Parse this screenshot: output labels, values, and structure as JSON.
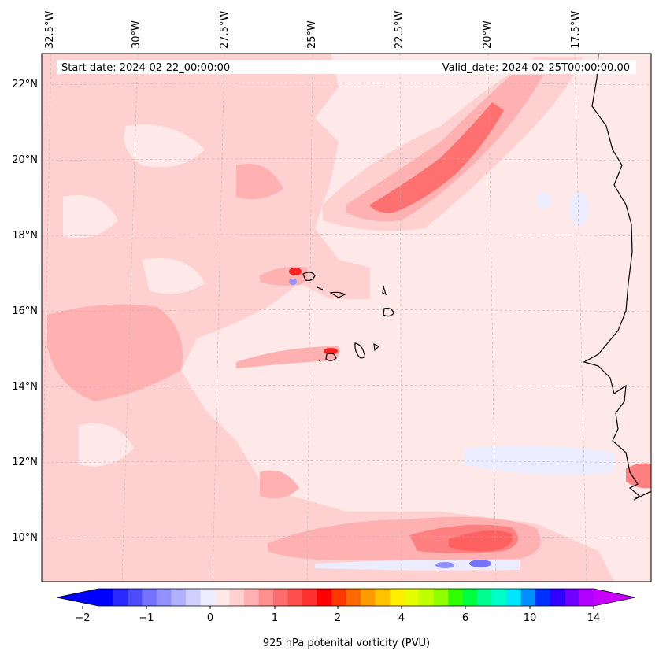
{
  "map": {
    "start_date": "Start date: 2024-02-22_00:00:00",
    "valid_date": "Valid_date: 2024-02-25T00:00:00.00",
    "lon_labels": [
      "32.5°W",
      "30°W",
      "27.5°W",
      "25°W",
      "22.5°W",
      "20°W",
      "17.5°W"
    ],
    "lat_labels": [
      "22°N",
      "20°N",
      "18°N",
      "16°N",
      "14°N",
      "12°N",
      "10°N"
    ]
  },
  "colorbar": {
    "title": "925 hPa potenital vorticity (PVU)",
    "tick_labels": [
      "−2",
      "−1",
      "0",
      "1",
      "2",
      "4",
      "6",
      "10",
      "14"
    ],
    "colors": [
      "#0000ff",
      "#2a2aff",
      "#4d4dff",
      "#7373ff",
      "#9090ff",
      "#b0b0ff",
      "#d0d0ff",
      "#ececff",
      "#ffe8e8",
      "#ffd0d0",
      "#ffb0b0",
      "#ff9090",
      "#ff6e6e",
      "#ff5050",
      "#ff3030",
      "#ff0000",
      "#ff3800",
      "#ff6a00",
      "#ff9a00",
      "#ffc400",
      "#ffee00",
      "#e6ff00",
      "#c0ff00",
      "#90ff00",
      "#30ff00",
      "#00ff40",
      "#00ff90",
      "#00ffc8",
      "#00e6ff",
      "#0090ff",
      "#0030ff",
      "#3000ff",
      "#7000ff",
      "#b000ff"
    ],
    "extend_color_low": "#0000ff",
    "extend_color_high": "#c800ff"
  },
  "colors": {
    "background_field": "#ffe8e8",
    "light_pink": "#ffd0d0",
    "mid_pink": "#ffb0b0",
    "red_core": "#ff6060",
    "light_blue": "#ececff",
    "coast": "#000000"
  }
}
